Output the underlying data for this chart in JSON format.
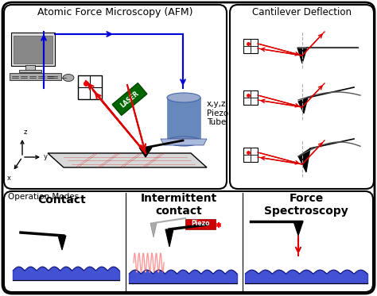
{
  "bg_color": "#ffffff",
  "panel_tl_title": "Atomic Force Microscopy (AFM)",
  "panel_tr_title": "Cantilever Deflection",
  "panel_bot_title": "Operation Modes",
  "contact_label": "Contact",
  "intermittent_label": "Intermittent\ncontact",
  "force_label": "Force\nSpectroscopy",
  "piezo_label": "Piezo",
  "xyz_label": "x,y,z\nPiezo\nTube",
  "laser_label": "LASER",
  "blue": "#0000dd",
  "red": "#dd0000",
  "green_dark": "#006600",
  "blue_cyl": "#6688bb",
  "blue_cyl_light": "#99aace",
  "gray_surf": "#cccccc",
  "dark_blue_surf": "#1122aa"
}
